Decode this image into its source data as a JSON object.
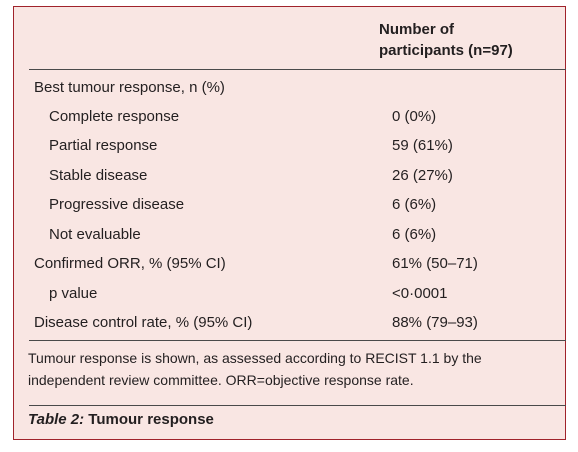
{
  "table": {
    "column_header_line1": "Number of",
    "column_header_line2": "participants (n=97)",
    "rows": [
      {
        "label": "Best tumour response, n (%)",
        "value": ""
      },
      {
        "label": "Complete response",
        "value": "0 (0%)"
      },
      {
        "label": "Partial response",
        "value": "59 (61%)"
      },
      {
        "label": "Stable disease",
        "value": "26 (27%)"
      },
      {
        "label": "Progressive disease",
        "value": "6 (6%)"
      },
      {
        "label": "Not evaluable",
        "value": "6 (6%)"
      },
      {
        "label": "Confirmed ORR, % (95% CI)",
        "value": "61% (50–71)"
      },
      {
        "label": "p value",
        "value": "<0·0001"
      },
      {
        "label": "Disease control rate, % (95% CI)",
        "value": "88% (79–93)"
      }
    ],
    "footnote": "Tumour response is shown, as assessed according to RECIST 1.1 by the independent review committee. ORR=objective response rate.",
    "caption_label": "Table 2:",
    "caption_title": " Tumour response"
  },
  "colors": {
    "panel_background": "#f9e6e3",
    "panel_border": "#a0232b",
    "text": "#231f20"
  }
}
